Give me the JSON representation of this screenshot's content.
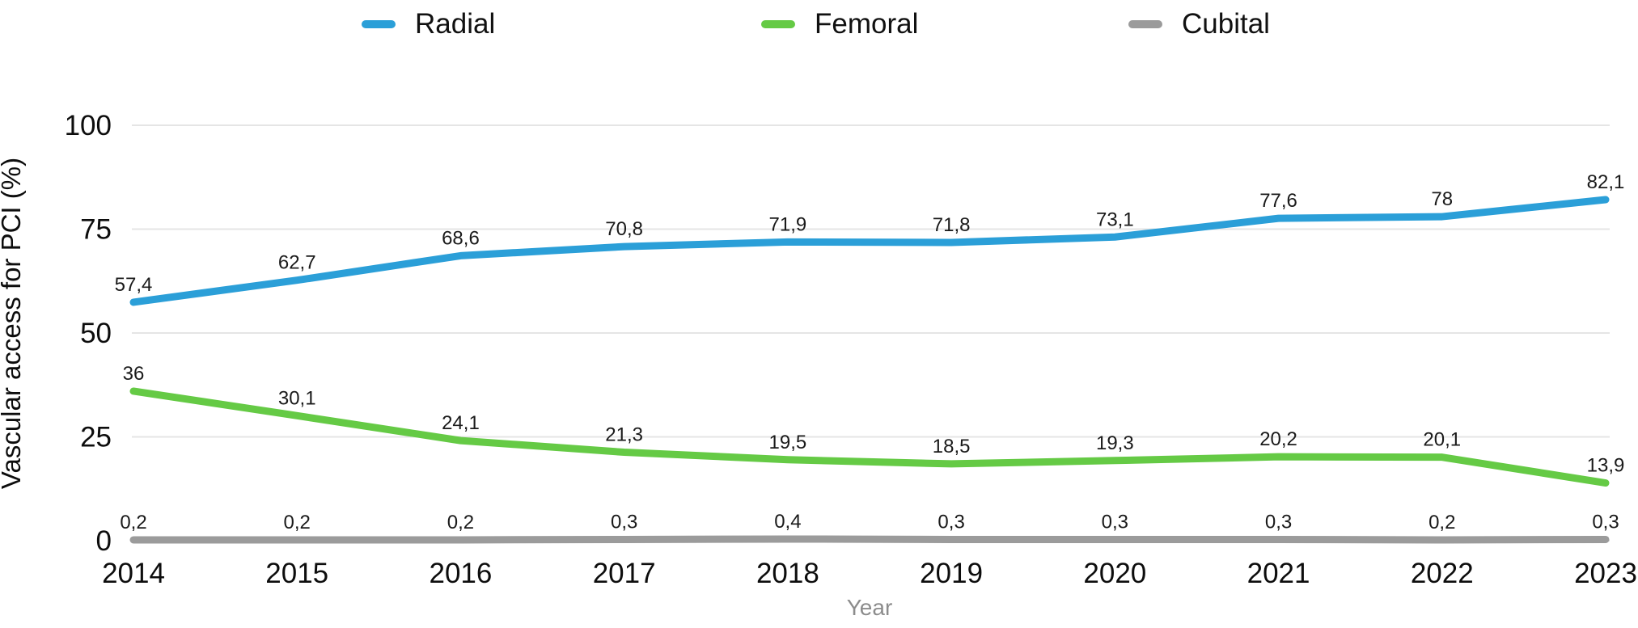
{
  "legend": {
    "items": [
      {
        "label": "Radial",
        "color": "#2b9fd8"
      },
      {
        "label": "Femoral",
        "color": "#65ca45"
      },
      {
        "label": "Cubital",
        "color": "#9b9b9b"
      }
    ]
  },
  "axes": {
    "y_title": "Vascular access for PCI (%)",
    "x_title": "Year"
  },
  "colors": {
    "grid": "#e5e5e5",
    "tick_text": "#0d0d0d",
    "data_label": "#1a1a1a"
  },
  "chart_data": {
    "type": "line",
    "title": "",
    "xlabel": "Year",
    "ylabel": "Vascular access for PCI (%)",
    "categories": [
      "2014",
      "2015",
      "2016",
      "2017",
      "2018",
      "2019",
      "2020",
      "2021",
      "2022",
      "2023"
    ],
    "ylim": [
      0,
      100
    ],
    "y_tick_values": [
      0,
      25,
      50,
      75,
      100
    ],
    "grid": true,
    "legend_position": "top",
    "decimal_separator": ",",
    "series": [
      {
        "name": "Radial",
        "color": "#2b9fd8",
        "values": [
          57.4,
          62.7,
          68.6,
          70.8,
          71.9,
          71.8,
          73.1,
          77.6,
          78,
          82.1
        ],
        "labels": [
          "57,4",
          "62,7",
          "68,6",
          "70,8",
          "71,9",
          "71,8",
          "73,1",
          "77,6",
          "78",
          "82,1"
        ]
      },
      {
        "name": "Femoral",
        "color": "#65ca45",
        "values": [
          36,
          30.1,
          24.1,
          21.3,
          19.5,
          18.5,
          19.3,
          20.2,
          20.1,
          13.9
        ],
        "labels": [
          "36",
          "30,1",
          "24,1",
          "21,3",
          "19,5",
          "18,5",
          "19,3",
          "20,2",
          "20,1",
          "13,9"
        ]
      },
      {
        "name": "Cubital",
        "color": "#9b9b9b",
        "values": [
          0.2,
          0.2,
          0.2,
          0.3,
          0.4,
          0.3,
          0.3,
          0.3,
          0.2,
          0.3
        ],
        "labels": [
          "0,2",
          "0,2",
          "0,2",
          "0,3",
          "0,4",
          "0,3",
          "0,3",
          "0,3",
          "0,2",
          "0,3"
        ]
      }
    ]
  }
}
